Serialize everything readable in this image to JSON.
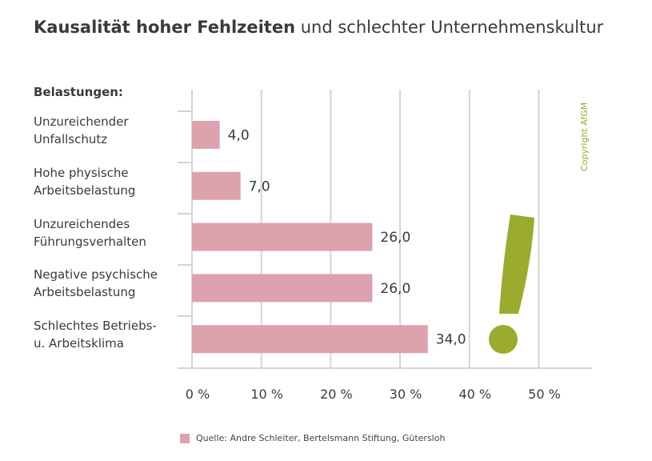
{
  "title_bold": "Kausalität hoher Fehlzeiten",
  "title_light": " und schlechter Unternehmenskultur",
  "group_label": "Belastungen:",
  "copyright": "Copyright  AfGM",
  "legend": "Quelle: Andre Schleiter, Bertelsmann Stiftung, Gütersloh",
  "colors": {
    "bar": "#dca3ae",
    "grid": "#d4d4d4",
    "accent": "#9aab2e"
  },
  "chart_data": {
    "type": "bar",
    "orientation": "horizontal",
    "categories": [
      [
        "Unzureichender",
        "Unfallschutz"
      ],
      [
        "Hohe physische",
        "Arbeitsbelastung"
      ],
      [
        "Unzureichendes",
        "Führungsverhalten"
      ],
      [
        "Negative psychische",
        "Arbeitsbelastung"
      ],
      [
        "Schlechtes Betriebs-",
        "u. Arbeitsklima"
      ]
    ],
    "values": [
      4.0,
      7.0,
      26.0,
      26.0,
      34.0
    ],
    "value_labels": [
      "4,0",
      "7,0",
      "26,0",
      "26,0",
      "34,0"
    ],
    "xticks": [
      "0 %",
      "10 %",
      "20 %",
      "30 %",
      "40 %",
      "50 %"
    ],
    "xlim": [
      0,
      50
    ],
    "grid": true
  }
}
